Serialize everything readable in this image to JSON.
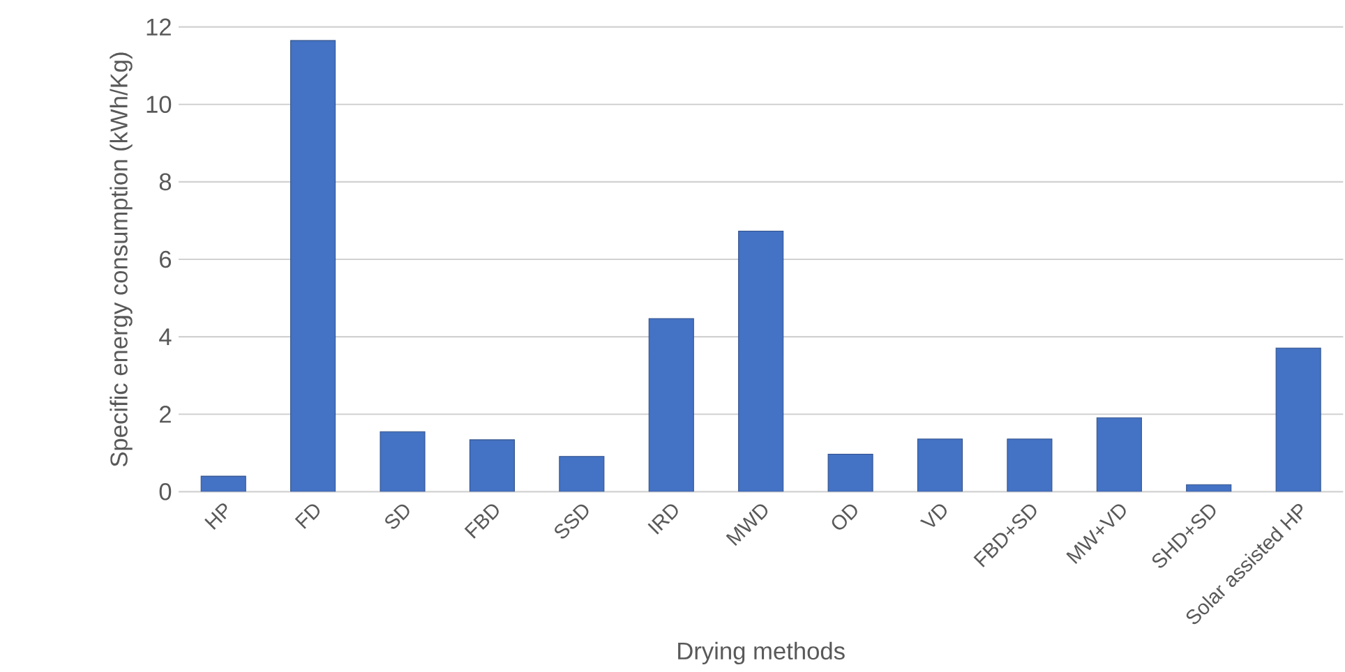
{
  "chart_data": {
    "type": "bar",
    "xlabel": "Drying methods",
    "ylabel": "Specific energy consumption (kWh/Kg)",
    "categories": [
      "HP",
      "FD",
      "SD",
      "FBD",
      "SSD",
      "IRD",
      "MWD",
      "OD",
      "VD",
      "FBD+SD",
      "MW+VD",
      "SHD+SD",
      "Solar assisted HP"
    ],
    "values": [
      0.4,
      11.65,
      1.55,
      1.34,
      0.91,
      4.47,
      6.73,
      0.97,
      1.36,
      1.36,
      1.91,
      0.18,
      3.71
    ],
    "color": "#4472c4",
    "ylim": [
      0,
      12
    ],
    "yticks": [
      0,
      2,
      4,
      6,
      8,
      10,
      12
    ],
    "grid": "y"
  }
}
